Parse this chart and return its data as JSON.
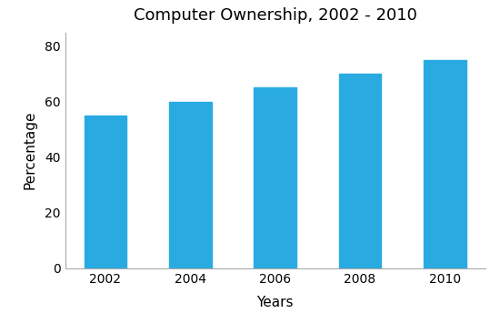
{
  "title": "Computer Ownership, 2002 - 2010",
  "xlabel": "Years",
  "ylabel": "Percentage",
  "categories": [
    "2002",
    "2004",
    "2006",
    "2008",
    "2010"
  ],
  "values": [
    55,
    60,
    65,
    70,
    75
  ],
  "bar_color": "#29ABE2",
  "ylim": [
    0,
    85
  ],
  "yticks": [
    0,
    20,
    40,
    60,
    80
  ],
  "bar_width": 0.5,
  "title_fontsize": 13,
  "label_fontsize": 11,
  "tick_fontsize": 10,
  "background_color": "#ffffff"
}
